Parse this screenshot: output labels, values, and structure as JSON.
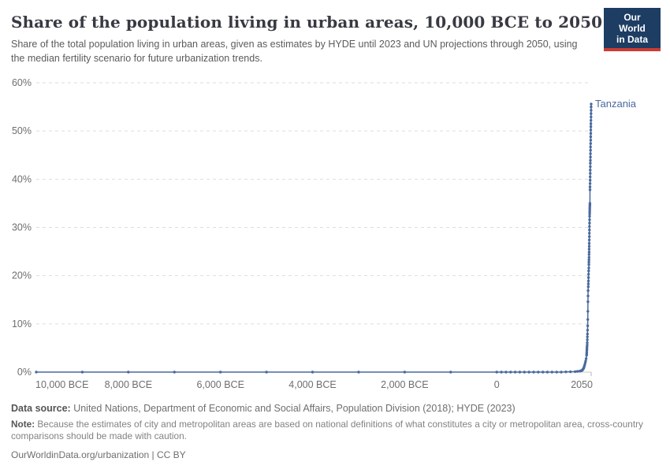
{
  "header": {
    "title": "Share of the population living in urban areas, 10,000 BCE to 2050",
    "subtitle": "Share of the total population living in urban areas, given as estimates by HYDE until 2023 and UN projections through 2050, using the median fertility scenario for future urbanization trends.",
    "logo": {
      "line1": "Our World",
      "line2": "in Data",
      "bg_color": "#1d3d63",
      "stripe_color": "#cc3b34"
    }
  },
  "chart_data": {
    "type": "line",
    "title": "Share of the population living in urban areas, 10,000 BCE to 2050",
    "xlabel": "",
    "ylabel": "",
    "xlim": [
      -10000,
      2050
    ],
    "ylim": [
      0,
      60
    ],
    "grid": "horizontal-dashed",
    "legend_position": "label-at-line-end",
    "y_ticks": [
      {
        "value": 0,
        "label": "0%"
      },
      {
        "value": 10,
        "label": "10%"
      },
      {
        "value": 20,
        "label": "20%"
      },
      {
        "value": 30,
        "label": "30%"
      },
      {
        "value": 40,
        "label": "40%"
      },
      {
        "value": 50,
        "label": "50%"
      },
      {
        "value": 60,
        "label": "60%"
      }
    ],
    "x_ticks": [
      {
        "value": -10000,
        "label": "10,000 BCE",
        "align": "start"
      },
      {
        "value": -8000,
        "label": "8,000 BCE"
      },
      {
        "value": -6000,
        "label": "6,000 BCE"
      },
      {
        "value": -4000,
        "label": "4,000 BCE"
      },
      {
        "value": -2000,
        "label": "2,000 BCE"
      },
      {
        "value": 0,
        "label": "0"
      },
      {
        "value": 2050,
        "label": "2050",
        "align": "end",
        "tick": true
      }
    ],
    "series": [
      {
        "name": "Tanzania",
        "color": "#4a699e",
        "points": [
          [
            -10000,
            0
          ],
          [
            -9000,
            0
          ],
          [
            -8000,
            0
          ],
          [
            -7000,
            0
          ],
          [
            -6000,
            0
          ],
          [
            -5000,
            0
          ],
          [
            -4000,
            0
          ],
          [
            -3000,
            0
          ],
          [
            -2000,
            0
          ],
          [
            -1000,
            0
          ],
          [
            0,
            0
          ],
          [
            100,
            0
          ],
          [
            200,
            0
          ],
          [
            300,
            0
          ],
          [
            400,
            0
          ],
          [
            500,
            0
          ],
          [
            600,
            0
          ],
          [
            700,
            0
          ],
          [
            800,
            0
          ],
          [
            900,
            0
          ],
          [
            1000,
            0
          ],
          [
            1100,
            0
          ],
          [
            1200,
            0
          ],
          [
            1300,
            0
          ],
          [
            1400,
            0
          ],
          [
            1500,
            0.05
          ],
          [
            1600,
            0.07
          ],
          [
            1700,
            0.1
          ],
          [
            1750,
            0.15
          ],
          [
            1800,
            0.2
          ],
          [
            1820,
            0.25
          ],
          [
            1840,
            0.3
          ],
          [
            1850,
            0.35
          ],
          [
            1860,
            0.45
          ],
          [
            1870,
            0.55
          ],
          [
            1880,
            0.7
          ],
          [
            1890,
            0.9
          ],
          [
            1900,
            1.2
          ],
          [
            1910,
            1.5
          ],
          [
            1920,
            1.9
          ],
          [
            1930,
            2.3
          ],
          [
            1940,
            2.8
          ],
          [
            1950,
            3.5
          ],
          [
            1952,
            3.8
          ],
          [
            1954,
            4.1
          ],
          [
            1956,
            4.5
          ],
          [
            1958,
            4.8
          ],
          [
            1960,
            5.2
          ],
          [
            1962,
            5.6
          ],
          [
            1964,
            6.1
          ],
          [
            1966,
            6.7
          ],
          [
            1968,
            7.3
          ],
          [
            1970,
            7.9
          ],
          [
            1972,
            8.7
          ],
          [
            1974,
            9.6
          ],
          [
            1976,
            10.9
          ],
          [
            1978,
            12.6
          ],
          [
            1980,
            14.6
          ],
          [
            1982,
            15.8
          ],
          [
            1984,
            16.9
          ],
          [
            1986,
            17.7
          ],
          [
            1988,
            18.3
          ],
          [
            1990,
            18.9
          ],
          [
            1992,
            19.6
          ],
          [
            1994,
            20.3
          ],
          [
            1996,
            21.0
          ],
          [
            1998,
            21.6
          ],
          [
            2000,
            22.3
          ],
          [
            2001,
            22.8
          ],
          [
            2002,
            23.3
          ],
          [
            2003,
            23.8
          ],
          [
            2004,
            24.4
          ],
          [
            2005,
            24.9
          ],
          [
            2006,
            25.5
          ],
          [
            2007,
            26.1
          ],
          [
            2008,
            26.7
          ],
          [
            2009,
            27.4
          ],
          [
            2010,
            28.1
          ],
          [
            2011,
            28.8
          ],
          [
            2012,
            29.5
          ],
          [
            2013,
            30.2
          ],
          [
            2014,
            30.9
          ],
          [
            2015,
            31.6
          ],
          [
            2016,
            32.3
          ],
          [
            2017,
            32.8
          ],
          [
            2018,
            33.2
          ],
          [
            2019,
            33.6
          ],
          [
            2020,
            34.0
          ],
          [
            2021,
            34.4
          ],
          [
            2022,
            34.7
          ],
          [
            2023,
            35.0
          ],
          [
            2024,
            37.8
          ],
          [
            2025,
            38.4
          ],
          [
            2026,
            39.1
          ],
          [
            2027,
            39.8
          ],
          [
            2028,
            40.5
          ],
          [
            2029,
            41.2
          ],
          [
            2030,
            41.9
          ],
          [
            2031,
            42.6
          ],
          [
            2032,
            43.3
          ],
          [
            2033,
            43.9
          ],
          [
            2034,
            44.6
          ],
          [
            2035,
            45.3
          ],
          [
            2036,
            46.0
          ],
          [
            2037,
            46.7
          ],
          [
            2038,
            47.4
          ],
          [
            2039,
            48.1
          ],
          [
            2040,
            48.8
          ],
          [
            2041,
            49.5
          ],
          [
            2042,
            50.2
          ],
          [
            2043,
            50.9
          ],
          [
            2044,
            51.5
          ],
          [
            2045,
            52.2
          ],
          [
            2046,
            52.9
          ],
          [
            2047,
            53.6
          ],
          [
            2048,
            54.3
          ],
          [
            2049,
            55.0
          ],
          [
            2050,
            55.6
          ]
        ]
      }
    ],
    "colors": {
      "gridline": "#dedede",
      "zero_axis": "#c8c8c8",
      "tick_mark": "#b5b5b5",
      "tick_label": "#6e6e6e"
    }
  },
  "footer": {
    "source_label": "Data source:",
    "source_text": " United Nations, Department of Economic and Social Affairs, Population Division (2018); HYDE (2023)",
    "note_label": "Note:",
    "note_text": " Because the estimates of city and metropolitan areas are based on national definitions of what constitutes a city or metropolitan area, cross-country comparisons should be made with caution.",
    "url_text": "OurWorldinData.org/urbanization | CC BY"
  }
}
